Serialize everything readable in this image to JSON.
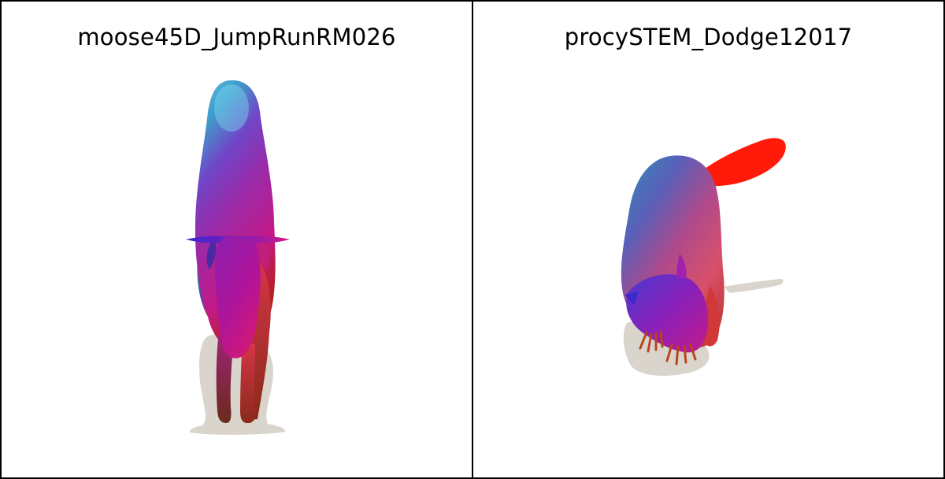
{
  "panels": [
    {
      "title": "moose45D_JumpRunRM026",
      "subject": "moose"
    },
    {
      "title": "procySTEM_Dodge12017",
      "subject": "raccoon"
    }
  ],
  "colors": {
    "border": "#000000",
    "background": "#ffffff",
    "shadow": "#d9d5cc",
    "tail": "#ff1a0a",
    "claws": "#b8451e"
  }
}
